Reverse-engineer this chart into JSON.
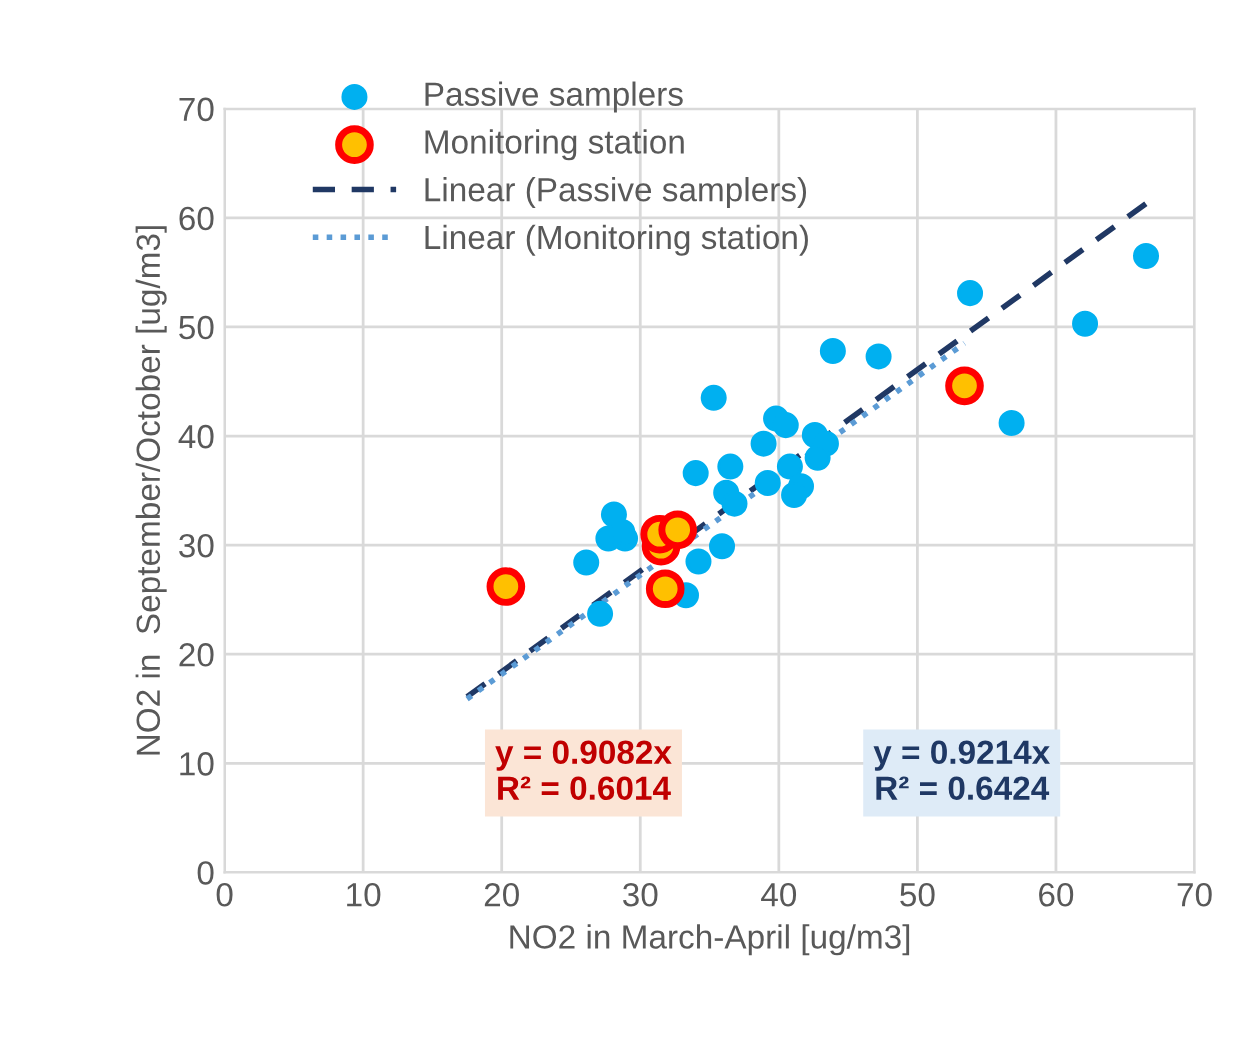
{
  "chart_data": {
    "type": "scatter",
    "xlabel": "NO2 in March-April [ug/m3]",
    "ylabel": "NO2 in  September/October [ug/m3]",
    "xlim": [
      0,
      70
    ],
    "ylim": [
      0,
      70
    ],
    "xticks": [
      0,
      10,
      20,
      30,
      40,
      50,
      60,
      70
    ],
    "yticks": [
      0,
      10,
      20,
      30,
      40,
      50,
      60,
      70
    ],
    "grid": true,
    "legend": "top left",
    "marker": "circle",
    "series": [
      {
        "name": "Passive samplers",
        "color": "#00b0f0",
        "x": [
          43.9,
          47.2,
          35.3,
          39.8,
          40.5,
          38.9,
          42.6,
          43.4,
          42.8,
          36.5,
          34.0,
          40.8,
          39.2,
          36.2,
          36.8,
          41.6,
          41.1,
          28.1,
          27.7,
          28.9,
          28.7,
          26.1,
          34.2,
          35.9,
          33.3,
          27.1,
          53.8,
          66.5,
          62.1,
          56.8
        ],
        "values": [
          47.8,
          47.3,
          43.5,
          41.6,
          41.0,
          39.3,
          40.1,
          39.3,
          38.0,
          37.2,
          36.6,
          37.2,
          35.7,
          34.8,
          33.8,
          35.4,
          34.6,
          32.8,
          30.6,
          30.6,
          31.2,
          28.4,
          28.5,
          29.9,
          25.4,
          23.7,
          53.1,
          56.5,
          50.3,
          41.2
        ]
      },
      {
        "name": "Monitoring station",
        "color": "#ffc000",
        "x": [
          20.3,
          31.5,
          31.4,
          32.7,
          31.8,
          53.4
        ],
        "values": [
          26.2,
          29.9,
          31.0,
          31.4,
          26.0,
          44.6
        ]
      },
      {
        "name": "Linear (Passive samplers)",
        "type": "line",
        "marker": "none",
        "line_style": "dashed",
        "color": "#203864",
        "x": [
          17.5,
          66.5
        ],
        "values": [
          16.1,
          61.3
        ]
      },
      {
        "name": "Linear (Monitoring station)",
        "type": "line",
        "marker": "none",
        "line_style": "dotted",
        "color": "#5b9bd5",
        "x": [
          17.5,
          53.4
        ],
        "values": [
          15.9,
          48.5
        ]
      }
    ],
    "annotations": [
      "y = 0.9082x\nR² = 0.6014",
      "y = 0.9214x\nR² = 0.6424"
    ]
  }
}
